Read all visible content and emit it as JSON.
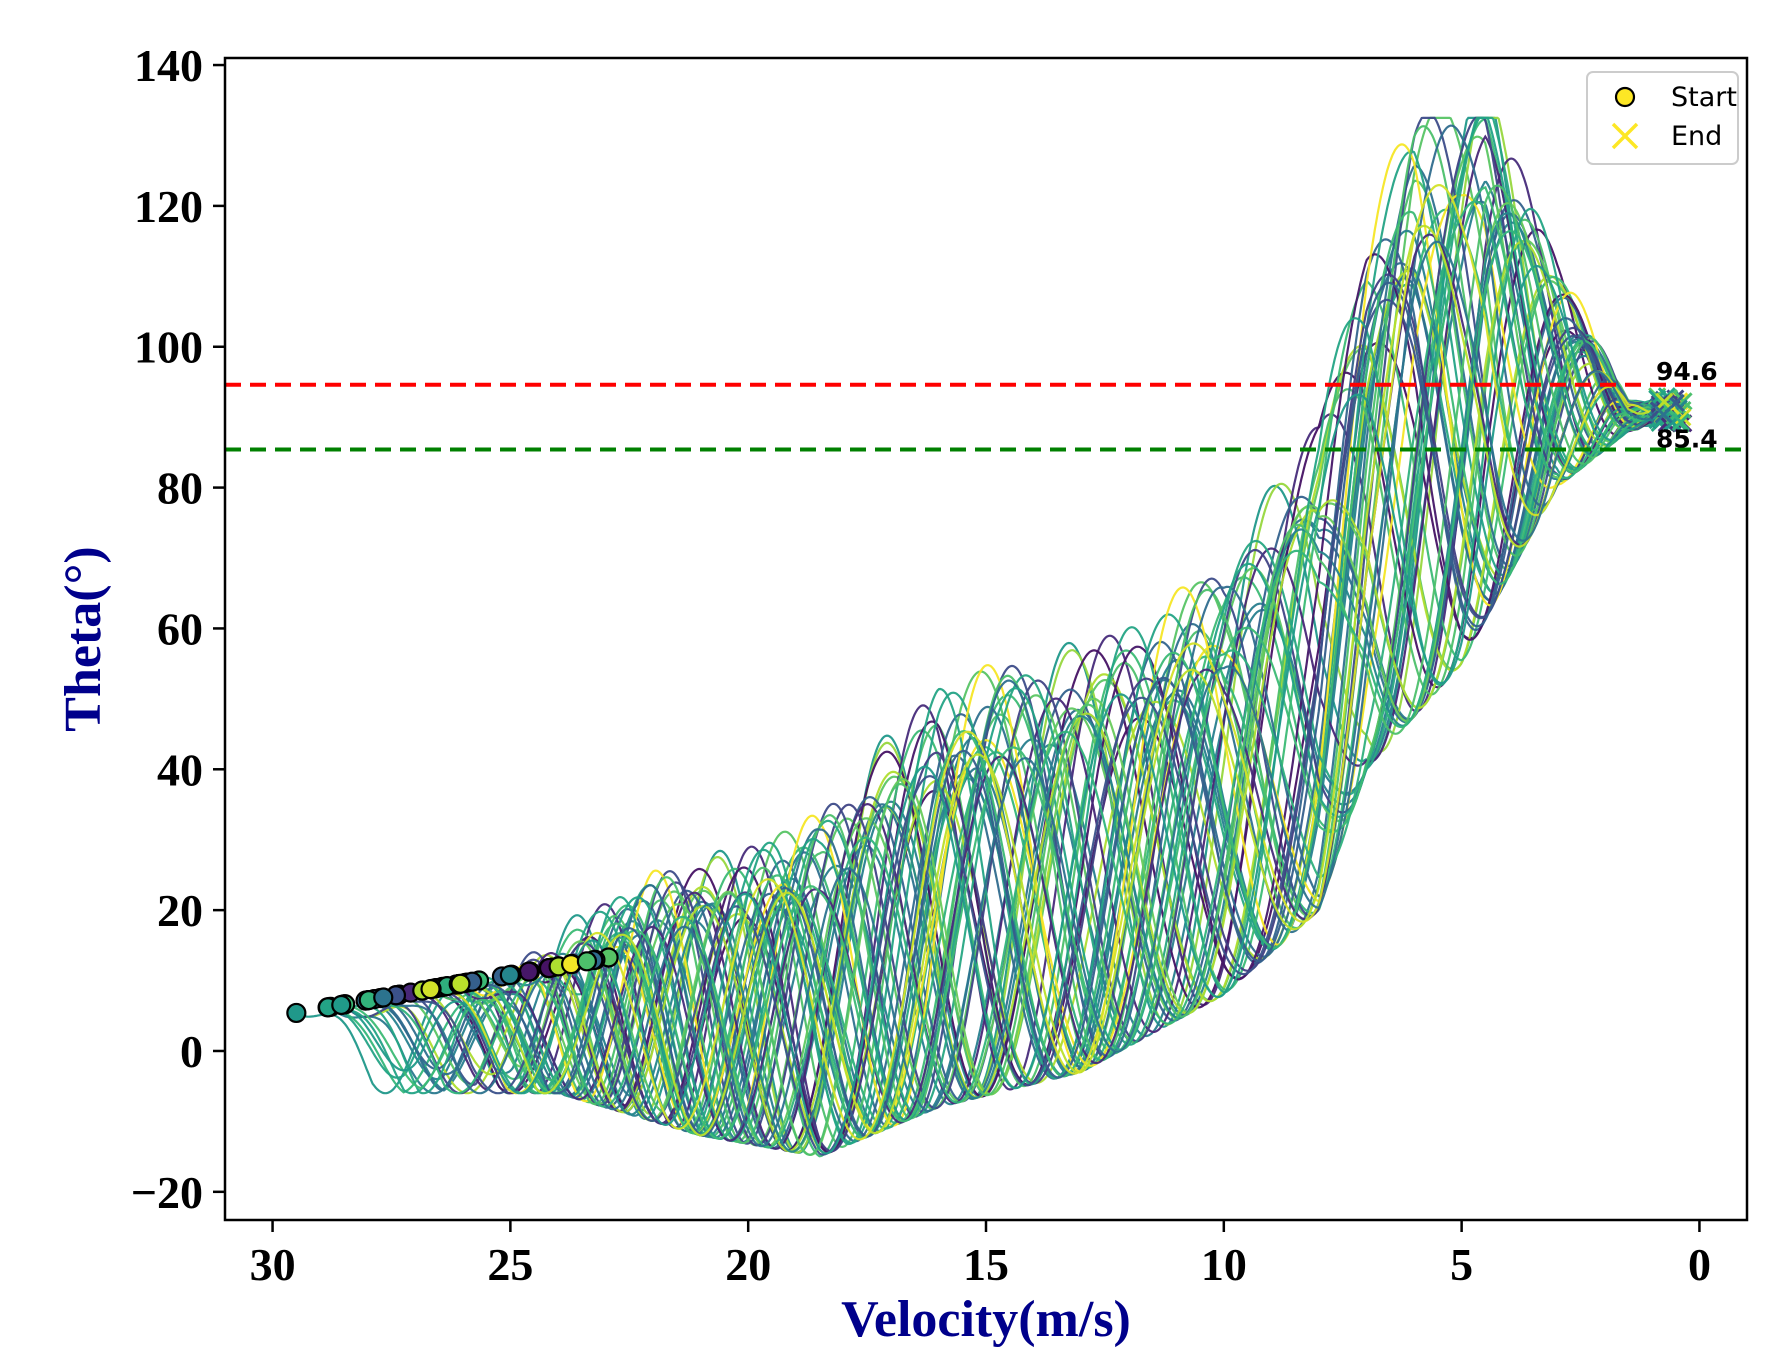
{
  "chart_data": {
    "type": "line",
    "title": "",
    "xlabel": "Velocity(m/s)",
    "ylabel": "Theta(°)",
    "xlim": [
      31,
      -1
    ],
    "ylim": [
      -24,
      141
    ],
    "x_inverted": true,
    "grid": false,
    "xticks": [
      30,
      25,
      20,
      15,
      10,
      5,
      0
    ],
    "xtick_labels": [
      "30",
      "25",
      "20",
      "15",
      "10",
      "5",
      "0"
    ],
    "yticks": [
      140,
      120,
      100,
      80,
      60,
      40,
      20,
      0,
      -20
    ],
    "ytick_labels": [
      "140",
      "120",
      "100",
      "80",
      "60",
      "40",
      "20",
      "0",
      "−20"
    ],
    "colormap": "viridis",
    "reference_lines": [
      {
        "y": 94.6,
        "label": "94.6",
        "color": "#ff0000",
        "style": "dashed"
      },
      {
        "y": 85.4,
        "label": "85.4",
        "color": "#008000",
        "style": "dashed"
      }
    ],
    "legend": {
      "position": "top-right",
      "entries": [
        {
          "label": "Start",
          "marker": "circle",
          "color": "#fde725"
        },
        {
          "label": "End",
          "marker": "x",
          "color": "#fde725"
        }
      ]
    },
    "trajectory_count": 56,
    "start_velocity_range": [
      22.5,
      29.5
    ],
    "start_theta_range": [
      5.4,
      13.8
    ],
    "end_velocity_range": [
      0.3,
      0.9
    ],
    "end_theta_range": [
      89,
      93
    ],
    "peak_theta_approx": 132.5,
    "peak_velocity_approx": 4.0,
    "min_theta_approx": -16.5,
    "min_velocity_at_min_theta_approx": 18.5
  }
}
